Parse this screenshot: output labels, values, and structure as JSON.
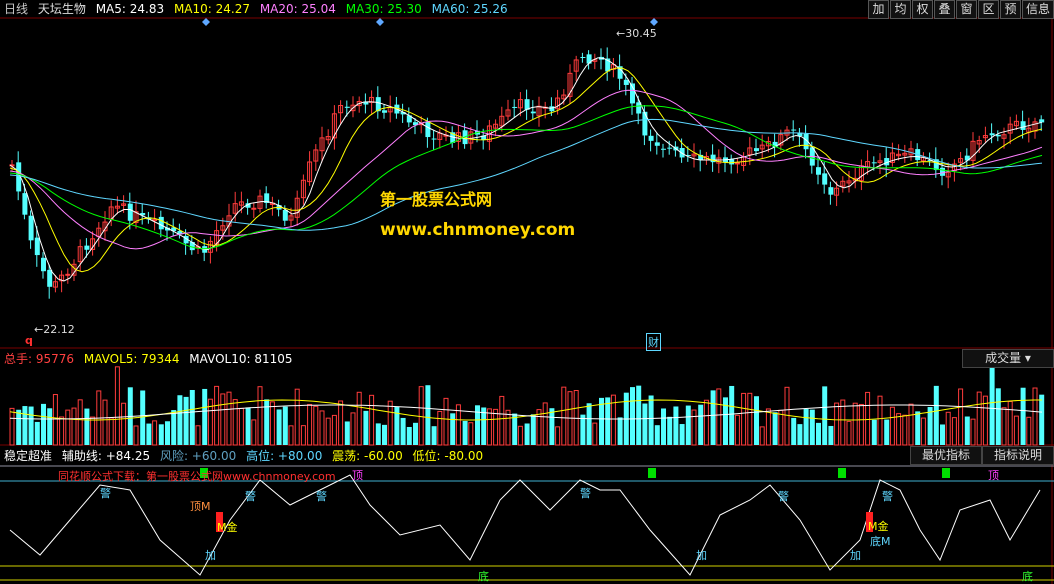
{
  "price_header": {
    "period": "日线",
    "stock_name": "天坛生物",
    "ma5": "MA5: 24.83",
    "ma10": "MA10: 24.27",
    "ma20": "MA20: 25.04",
    "ma30": "MA30: 25.30",
    "ma60": "MA60: 25.26"
  },
  "toolbar": {
    "items": [
      "加",
      "均",
      "权",
      "叠",
      "窗",
      "区",
      "预",
      "信息"
    ]
  },
  "price_panel": {
    "high_label": "30.45",
    "low_label": "22.12",
    "q_marker": "q",
    "cai_marker": "财"
  },
  "watermark": {
    "line1": "第一股票公式网",
    "line2": "www.chnmoney.com"
  },
  "volume_header": {
    "total": "总手: 95776",
    "mavol5": "MAVOL5: 79344",
    "mavol10": "MAVOL10: 81105",
    "dropdown": "成交量"
  },
  "indicator_header": {
    "name": "稳定超准",
    "aux": "辅助线: +84.25",
    "risk": "风险: +60.00",
    "high": "高位: +80.00",
    "shock": "震荡: -60.00",
    "low": "低位: -80.00",
    "best_button": "最优指标",
    "help_button": "指标说明"
  },
  "indicator_panel": {
    "notice": "同花顺公式下载：第一股票公式网www.chnmoney.com",
    "labels": {
      "ding": "顶",
      "jing": "警",
      "dingM": "顶M",
      "jia": "加",
      "di": "底",
      "diM": "底M",
      "Mjin": "M金"
    }
  },
  "colors": {
    "up": "#ff3c3c",
    "down": "#54ffff",
    "ma5": "#ffffff",
    "ma10": "#ffff00",
    "ma20": "#ff80ff",
    "ma30": "#00ff00",
    "ma60": "#5fd7ff"
  }
}
